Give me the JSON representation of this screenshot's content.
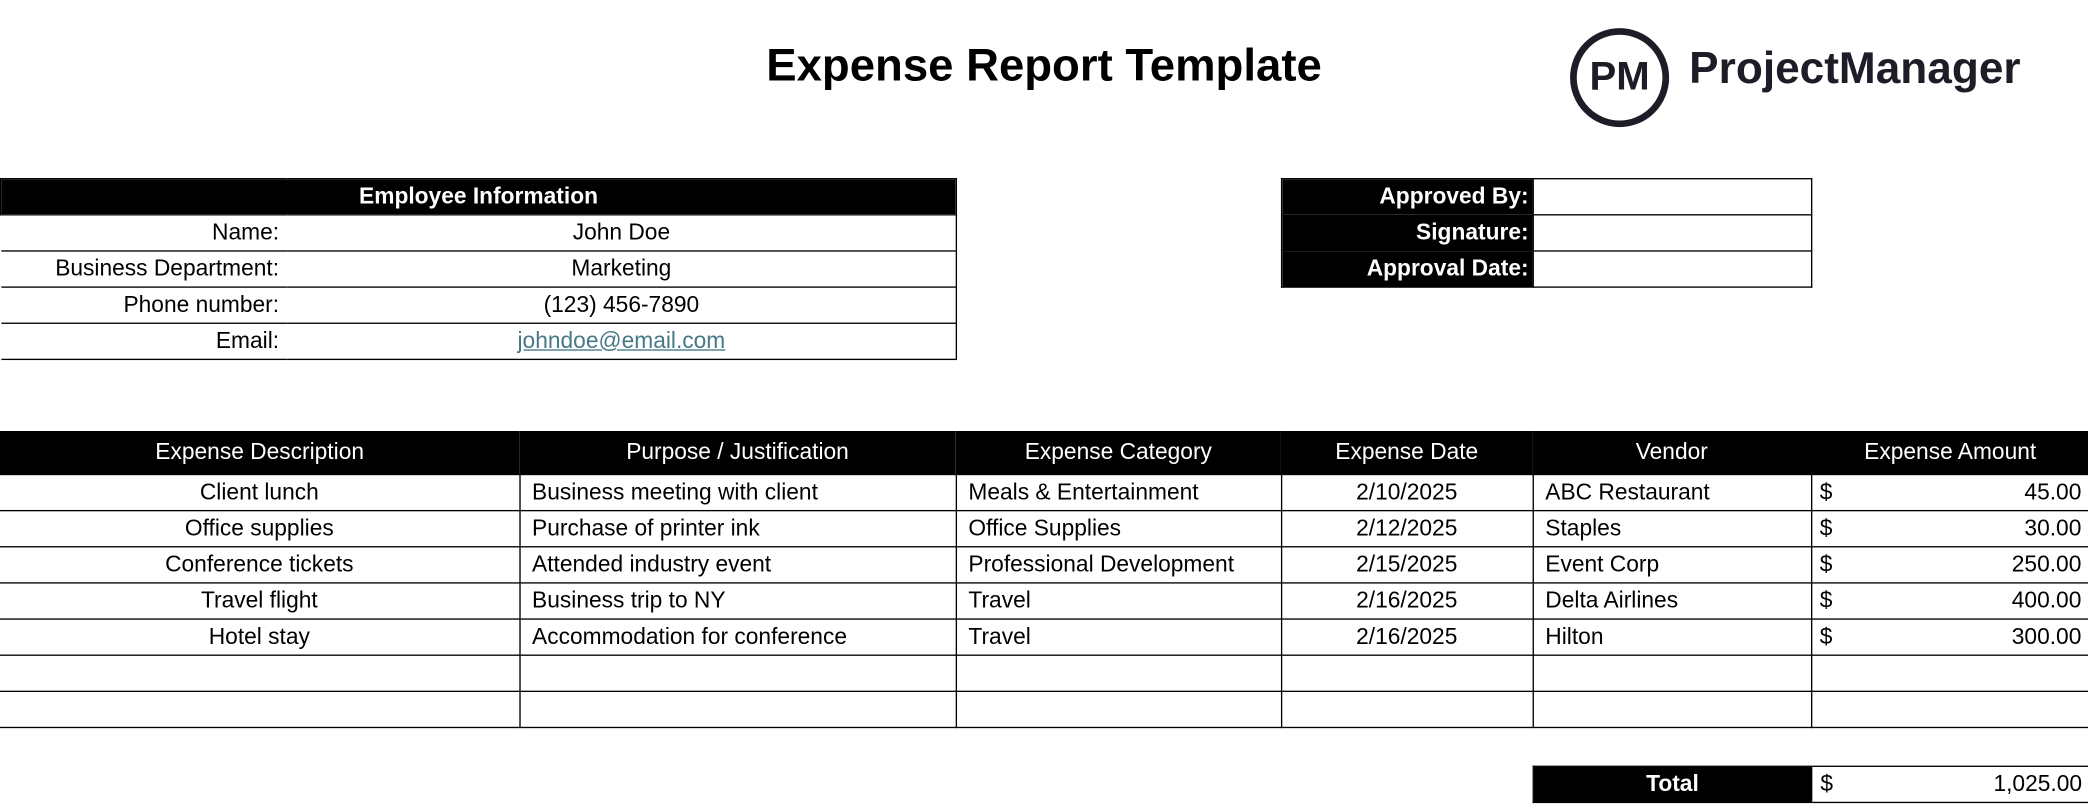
{
  "title": "Expense Report Template",
  "logo": {
    "mark": "PM",
    "name": "ProjectManager"
  },
  "employee": {
    "header": "Employee Information",
    "rows": [
      {
        "label": "Name:",
        "value": "John Doe"
      },
      {
        "label": "Business Department:",
        "value": "Marketing"
      },
      {
        "label": "Phone number:",
        "value": "(123) 456-7890"
      },
      {
        "label": "Email:",
        "value": "johndoe@email.com"
      }
    ]
  },
  "approval": {
    "rows": [
      {
        "label": "Approved By:",
        "value": ""
      },
      {
        "label": "Signature:",
        "value": ""
      },
      {
        "label": "Approval Date:",
        "value": ""
      }
    ]
  },
  "expenses": {
    "columns": [
      "Expense Description",
      "Purpose / Justification",
      "Expense Category",
      "Expense Date",
      "Vendor",
      "Expense Amount"
    ],
    "rows": [
      [
        "Client lunch",
        "Business meeting with client",
        "Meals & Entertainment",
        "2/10/2025",
        "ABC Restaurant",
        "45.00"
      ],
      [
        "Office supplies",
        "Purchase of printer ink",
        "Office Supplies",
        "2/12/2025",
        "Staples",
        "30.00"
      ],
      [
        "Conference tickets",
        "Attended industry event",
        "Professional Development",
        "2/15/2025",
        "Event Corp",
        "250.00"
      ],
      [
        "Travel flight",
        "Business trip to NY",
        "Travel",
        "2/16/2025",
        "Delta Airlines",
        "400.00"
      ],
      [
        "Hotel stay",
        "Accommodation for conference",
        "Travel",
        "2/16/2025",
        "Hilton",
        "300.00"
      ]
    ],
    "empty_rows": 2,
    "currency": "$"
  },
  "total": {
    "label": "Total",
    "currency": "$",
    "value": "1,025.00"
  }
}
